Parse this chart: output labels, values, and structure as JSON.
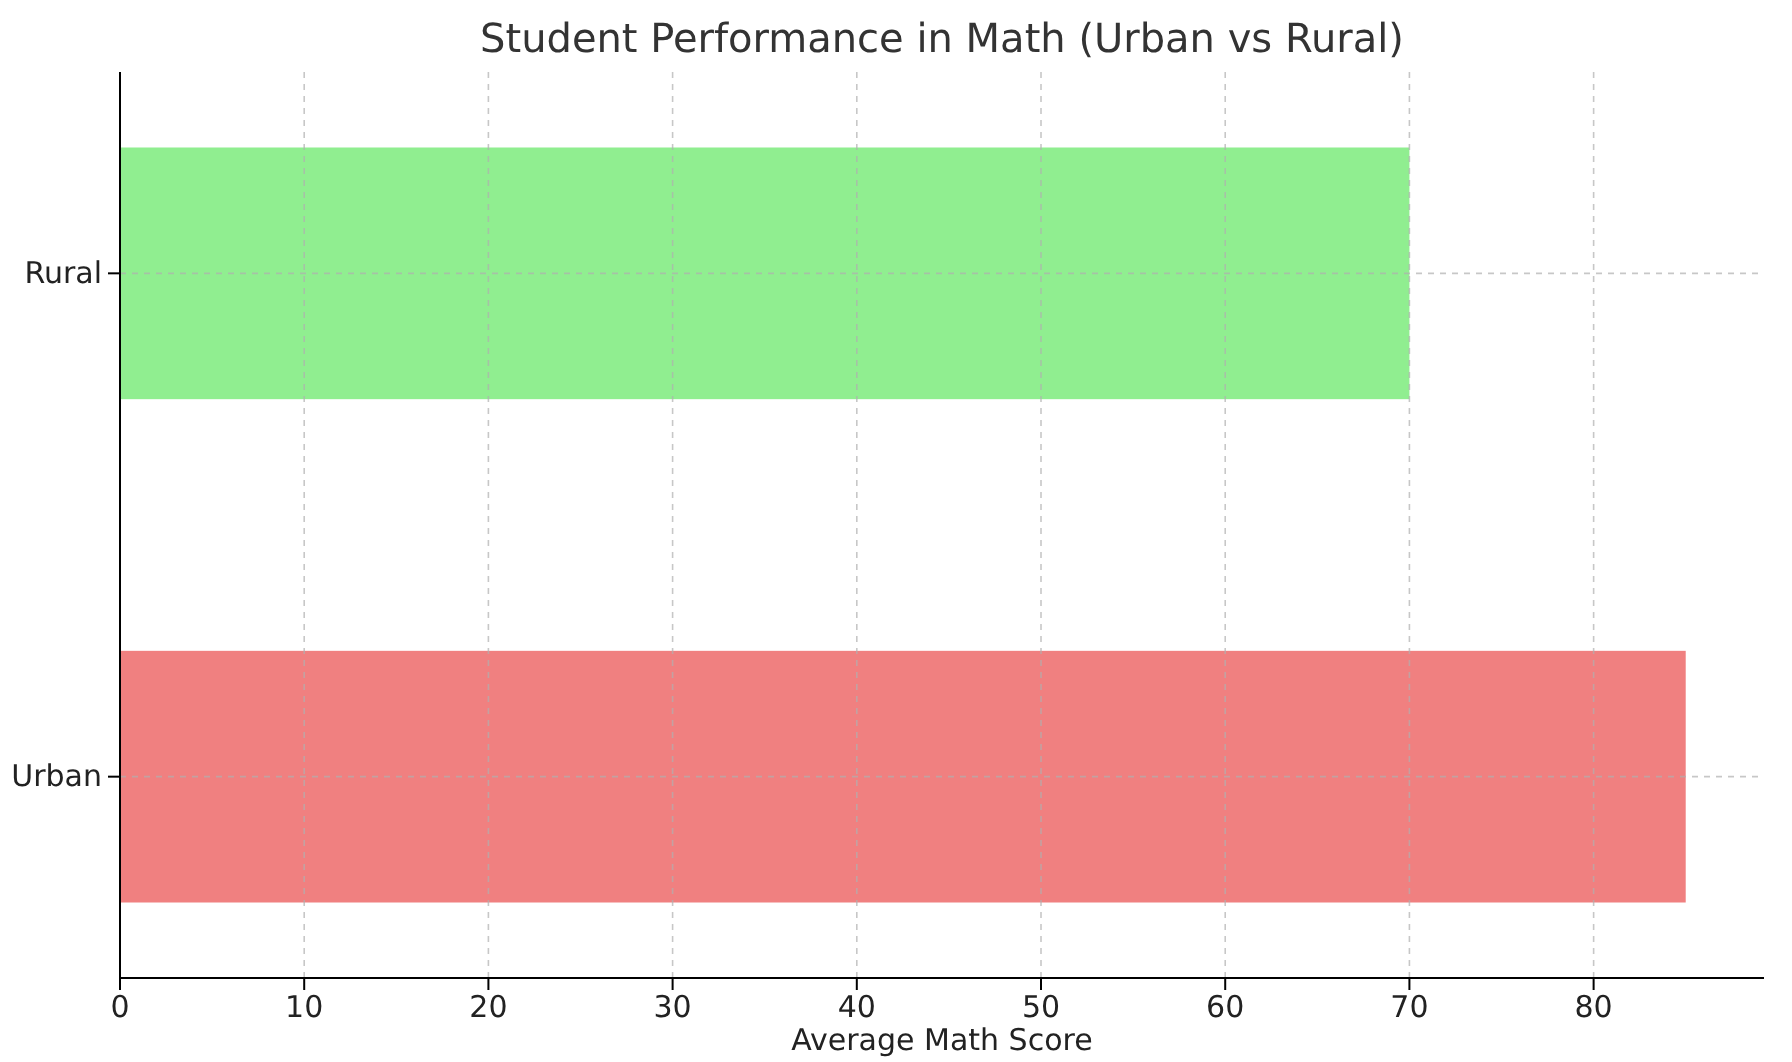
{
  "chart_data": {
    "type": "bar",
    "orientation": "horizontal",
    "title": "Student Performance in Math (Urban vs Rural)",
    "xlabel": "Average Math Score",
    "categories": [
      "Rural",
      "Urban"
    ],
    "values": [
      70,
      85
    ],
    "colors": [
      "#90ee90",
      "#f08080"
    ],
    "xlim": [
      0,
      89.25
    ],
    "xticks": [
      0,
      10,
      20,
      30,
      40,
      50,
      60,
      70,
      80
    ],
    "grid": true
  }
}
